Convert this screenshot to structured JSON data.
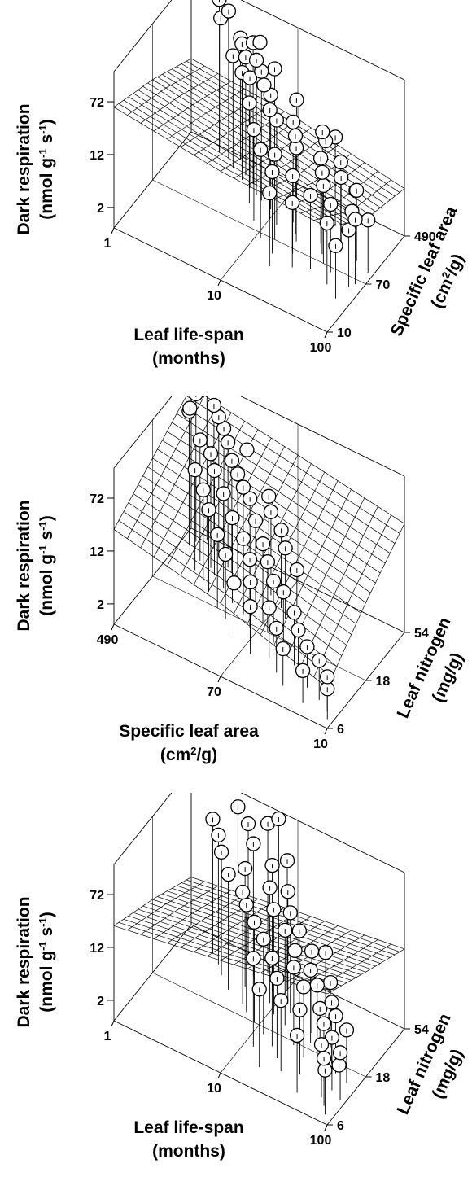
{
  "chart_data": [
    {
      "type": "scatter3d",
      "x_label": [
        "Leaf life-span",
        "(months)"
      ],
      "y_label": [
        "Specific leaf area",
        "(cm",
        "2",
        "/g)"
      ],
      "z_label": [
        "Dark respiration",
        "(nmol g",
        "-1",
        " s",
        "-1",
        ")"
      ],
      "x_ticks": [
        "1",
        "10",
        "100"
      ],
      "y_ticks": [
        "10",
        "70",
        "490"
      ],
      "z_ticks": [
        "2",
        "12",
        "72"
      ],
      "x_scale": "log",
      "y_scale": "log",
      "z_scale": "log",
      "xlim": [
        1,
        100
      ],
      "ylim": [
        10,
        490
      ],
      "zlim": [
        1,
        200
      ],
      "x_reversed": false,
      "y_reversed": false,
      "surface": {
        "grid": 16,
        "z": [
          [
            60,
            30,
            12
          ],
          [
            40,
            18,
            9
          ],
          [
            35,
            9,
            5
          ]
        ]
      },
      "points": [
        [
          2,
          400,
          180
        ],
        [
          2,
          430,
          90
        ],
        [
          2.5,
          380,
          150
        ],
        [
          3,
          450,
          60
        ],
        [
          3.5,
          340,
          70
        ],
        [
          4,
          300,
          55
        ],
        [
          3,
          310,
          45
        ],
        [
          5,
          260,
          120
        ],
        [
          6,
          240,
          150
        ],
        [
          6,
          200,
          95
        ],
        [
          7,
          180,
          80
        ],
        [
          8,
          150,
          65
        ],
        [
          4,
          250,
          38
        ],
        [
          5,
          220,
          42
        ],
        [
          9,
          160,
          48
        ],
        [
          10,
          120,
          40
        ],
        [
          12,
          110,
          35
        ],
        [
          6,
          140,
          30
        ],
        [
          15,
          150,
          30
        ],
        [
          18,
          110,
          28
        ],
        [
          20,
          90,
          24
        ],
        [
          8,
          90,
          22
        ],
        [
          25,
          200,
          25
        ],
        [
          28,
          180,
          22
        ],
        [
          30,
          120,
          18
        ],
        [
          35,
          90,
          16
        ],
        [
          40,
          70,
          14
        ],
        [
          45,
          130,
          12
        ],
        [
          50,
          60,
          10
        ],
        [
          60,
          140,
          9
        ],
        [
          70,
          80,
          8
        ],
        [
          80,
          50,
          7
        ],
        [
          90,
          100,
          6
        ],
        [
          35,
          50,
          12
        ],
        [
          22,
          60,
          14
        ],
        [
          14,
          70,
          18
        ],
        [
          11,
          60,
          20
        ],
        [
          16,
          45,
          16
        ],
        [
          55,
          40,
          8
        ],
        [
          65,
          120,
          11
        ],
        [
          85,
          60,
          9
        ],
        [
          42,
          150,
          17
        ],
        [
          30,
          250,
          20
        ],
        [
          12,
          300,
          30
        ],
        [
          7,
          350,
          50
        ],
        [
          26,
          40,
          9
        ],
        [
          18,
          30,
          12
        ],
        [
          75,
          30,
          6
        ]
      ]
    },
    {
      "type": "scatter3d",
      "x_label": [
        "Specific leaf area",
        "(cm",
        "2",
        "/g)"
      ],
      "y_label": [
        "Leaf nitrogen",
        "(mg/g)"
      ],
      "z_label": [
        "Dark respiration",
        "(nmol g",
        "-1",
        " s",
        "-1",
        ")"
      ],
      "x_ticks": [
        "490",
        "70",
        "10"
      ],
      "y_ticks": [
        "6",
        "18",
        "54"
      ],
      "z_ticks": [
        "2",
        "12",
        "72"
      ],
      "x_scale": "log",
      "y_scale": "log",
      "z_scale": "log",
      "xlim": [
        490,
        10
      ],
      "ylim": [
        6,
        54
      ],
      "zlim": [
        1,
        200
      ],
      "x_reversed": true,
      "y_reversed": false,
      "surface": {
        "grid": 16,
        "z": [
          [
            25,
            55,
            120
          ],
          [
            12,
            30,
            70
          ],
          [
            4,
            14,
            40
          ]
        ]
      },
      "points": [
        [
          350,
          50,
          190
        ],
        [
          400,
          45,
          150
        ],
        [
          300,
          48,
          120
        ],
        [
          260,
          44,
          105
        ],
        [
          420,
          40,
          95
        ],
        [
          230,
          42,
          85
        ],
        [
          200,
          38,
          70
        ],
        [
          380,
          35,
          140
        ],
        [
          310,
          34,
          60
        ],
        [
          250,
          33,
          48
        ],
        [
          180,
          36,
          45
        ],
        [
          150,
          32,
          40
        ],
        [
          220,
          30,
          35
        ],
        [
          130,
          30,
          32
        ],
        [
          300,
          28,
          30
        ],
        [
          110,
          28,
          28
        ],
        [
          170,
          26,
          25
        ],
        [
          240,
          25,
          22
        ],
        [
          90,
          24,
          20
        ],
        [
          130,
          22,
          18
        ],
        [
          200,
          22,
          16
        ],
        [
          70,
          20,
          15
        ],
        [
          100,
          20,
          13
        ],
        [
          150,
          18,
          12
        ],
        [
          60,
          18,
          11
        ],
        [
          80,
          17,
          10
        ],
        [
          120,
          16,
          9
        ],
        [
          50,
          16,
          8
        ],
        [
          40,
          15,
          7.5
        ],
        [
          70,
          14,
          7
        ],
        [
          30,
          13,
          6
        ],
        [
          90,
          13,
          6
        ],
        [
          45,
          12,
          5.5
        ],
        [
          25,
          11,
          5
        ],
        [
          60,
          11,
          5
        ],
        [
          35,
          10,
          4.5
        ],
        [
          20,
          10,
          4
        ],
        [
          15,
          9,
          3.8
        ],
        [
          28,
          8.5,
          3.5
        ],
        [
          12,
          8,
          3.2
        ],
        [
          18,
          7.5,
          3
        ],
        [
          11,
          7,
          2.8
        ],
        [
          40,
          22,
          9
        ],
        [
          55,
          26,
          11
        ],
        [
          65,
          30,
          14
        ],
        [
          85,
          34,
          17
        ],
        [
          95,
          38,
          22
        ],
        [
          160,
          46,
          50
        ]
      ]
    },
    {
      "type": "scatter3d",
      "x_label": [
        "Leaf life-span",
        "(months)"
      ],
      "y_label": [
        "Leaf nitrogen",
        "(mg/g)"
      ],
      "z_label": [
        "Dark respiration",
        "(nmol g",
        "-1",
        " s",
        "-1",
        ")"
      ],
      "x_ticks": [
        "1",
        "10",
        "100"
      ],
      "y_ticks": [
        "6",
        "18",
        "54"
      ],
      "z_ticks": [
        "2",
        "12",
        "72"
      ],
      "x_scale": "log",
      "y_scale": "log",
      "z_scale": "log",
      "xlim": [
        1,
        100
      ],
      "ylim": [
        6,
        54
      ],
      "zlim": [
        1,
        200
      ],
      "x_reversed": false,
      "y_reversed": false,
      "surface": {
        "grid": 16,
        "z": [
          [
            25,
            12,
            5
          ],
          [
            45,
            20,
            9
          ],
          [
            85,
            35,
            15
          ]
        ]
      },
      "points": [
        [
          3,
          48,
          150
        ],
        [
          2,
          40,
          95
        ],
        [
          2.5,
          35,
          80
        ],
        [
          4,
          44,
          120
        ],
        [
          3,
          30,
          65
        ],
        [
          5,
          38,
          90
        ],
        [
          6,
          45,
          160
        ],
        [
          7,
          50,
          180
        ],
        [
          5,
          30,
          55
        ],
        [
          4,
          25,
          50
        ],
        [
          8,
          35,
          70
        ],
        [
          10,
          40,
          80
        ],
        [
          6,
          22,
          45
        ],
        [
          9,
          28,
          50
        ],
        [
          12,
          32,
          45
        ],
        [
          7,
          20,
          38
        ],
        [
          11,
          24,
          35
        ],
        [
          14,
          28,
          30
        ],
        [
          9,
          18,
          30
        ],
        [
          15,
          22,
          25
        ],
        [
          18,
          26,
          22
        ],
        [
          12,
          16,
          25
        ],
        [
          20,
          20,
          18
        ],
        [
          25,
          24,
          16
        ],
        [
          16,
          14,
          20
        ],
        [
          22,
          17,
          14
        ],
        [
          28,
          20,
          12
        ],
        [
          30,
          15,
          11
        ],
        [
          35,
          18,
          10
        ],
        [
          40,
          22,
          9
        ],
        [
          20,
          12,
          15
        ],
        [
          45,
          14,
          8
        ],
        [
          50,
          17,
          8
        ],
        [
          55,
          12,
          7
        ],
        [
          60,
          15,
          7
        ],
        [
          70,
          11,
          6
        ],
        [
          80,
          14,
          6
        ],
        [
          90,
          10,
          5
        ],
        [
          35,
          11,
          9
        ],
        [
          65,
          9,
          6
        ],
        [
          25,
          10,
          11
        ],
        [
          42,
          8,
          7
        ],
        [
          75,
          8,
          5
        ],
        [
          85,
          7,
          4.5
        ],
        [
          95,
          9,
          4
        ],
        [
          12,
          12,
          20
        ],
        [
          17,
          9,
          14
        ],
        [
          30,
          28,
          14
        ]
      ]
    }
  ]
}
